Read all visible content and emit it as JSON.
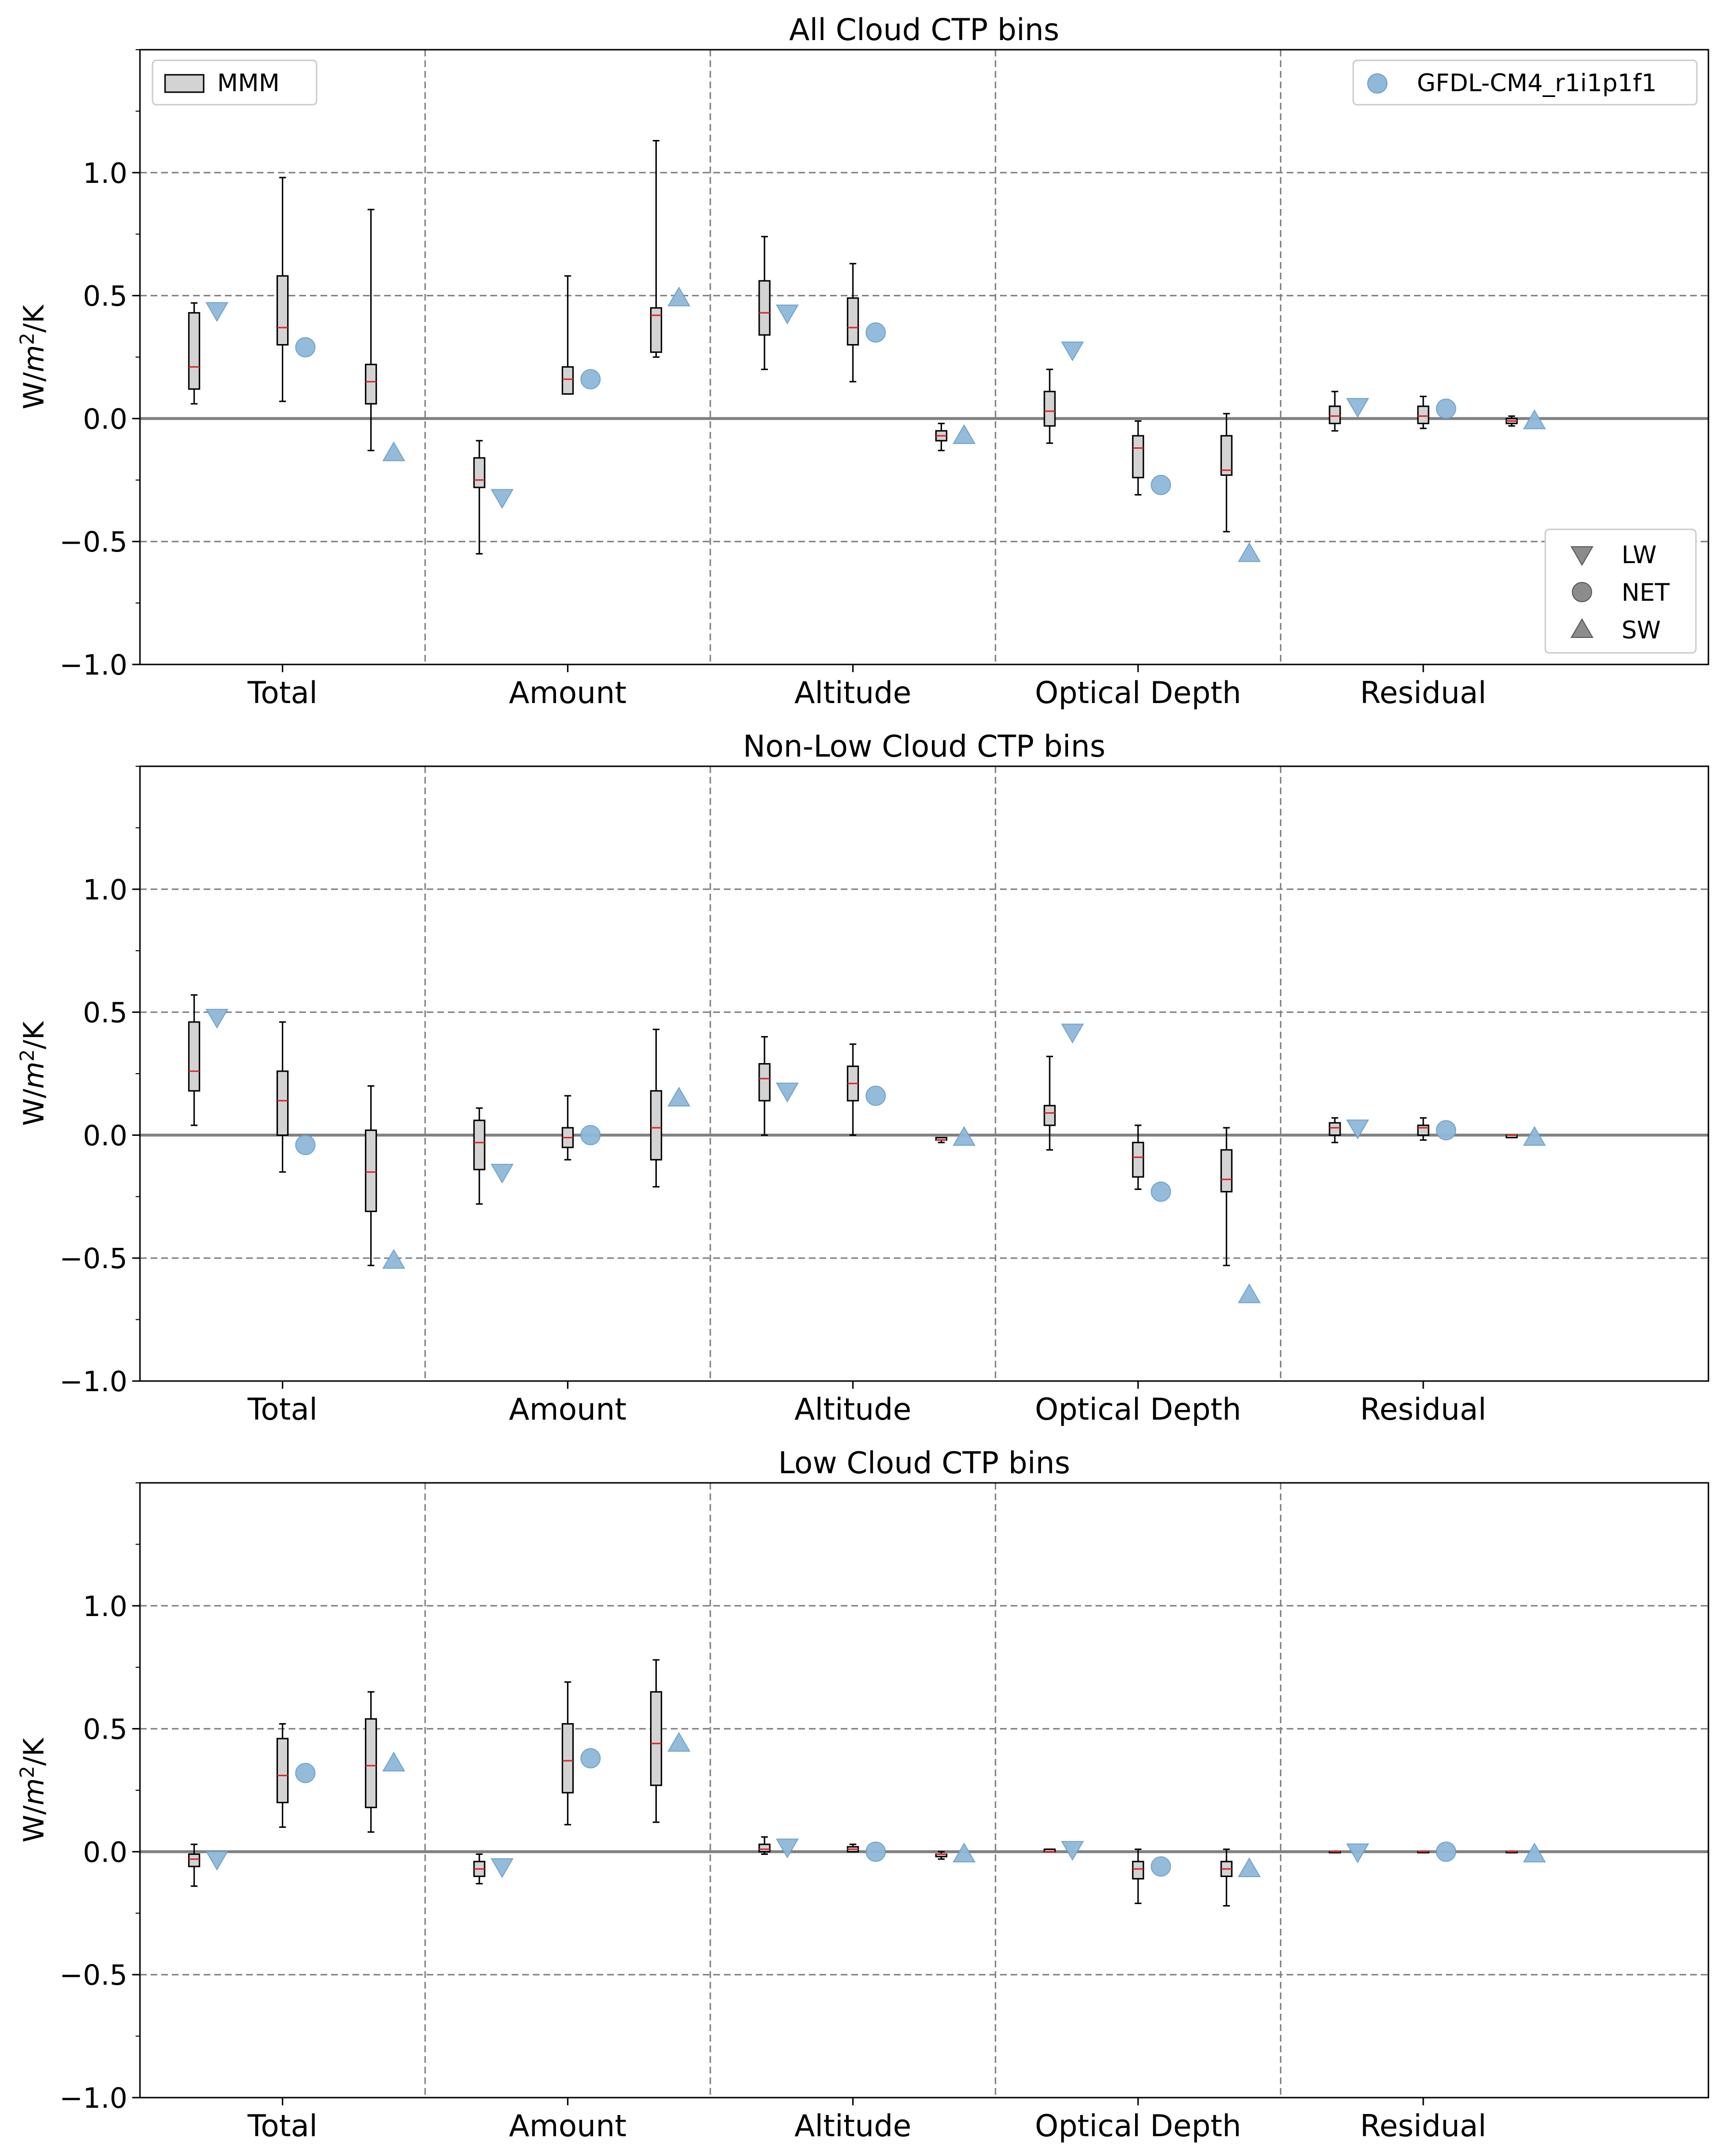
{
  "figure": {
    "legend_mmm_label": "MMM",
    "legend_model_label": "GFDL-CM4_r1i1p1f1",
    "legend_component_labels": [
      "LW",
      "NET",
      "SW"
    ],
    "colors": {
      "box_fill": "#d3d3d3",
      "median": "#d62728",
      "model_marker": "#8fb8d9",
      "zero_line": "#808080",
      "grid": "#808080"
    }
  },
  "chart_data": [
    {
      "type": "box",
      "title": "All Cloud CTP bins",
      "ylabel": "W/m²/K",
      "ylim": [
        -1.0,
        1.5
      ],
      "yticks": [
        -1.0,
        -0.5,
        0.0,
        0.5,
        1.0
      ],
      "ytick_labels": [
        "−1.0",
        "−0.5",
        "0.0",
        "0.5",
        "1.0"
      ],
      "grid": "dashed",
      "categories": [
        "Total",
        "Amount",
        "Altitude",
        "Optical Depth",
        "Residual"
      ],
      "components": [
        "LW",
        "NET",
        "SW"
      ],
      "mmm": {
        "LW": [
          [
            0.06,
            0.12,
            0.21,
            0.43,
            0.47
          ],
          [
            -0.55,
            -0.28,
            -0.25,
            -0.16,
            -0.09
          ],
          [
            0.2,
            0.34,
            0.43,
            0.56,
            0.74
          ],
          [
            -0.1,
            -0.03,
            0.03,
            0.11,
            0.2
          ],
          [
            -0.05,
            -0.02,
            0.01,
            0.05,
            0.11
          ]
        ],
        "NET": [
          [
            0.07,
            0.3,
            0.37,
            0.58,
            0.98
          ],
          [
            0.1,
            0.1,
            0.16,
            0.21,
            0.58
          ],
          [
            0.15,
            0.3,
            0.37,
            0.49,
            0.63
          ],
          [
            -0.31,
            -0.24,
            -0.12,
            -0.07,
            -0.01
          ],
          [
            -0.04,
            -0.02,
            0.01,
            0.05,
            0.09
          ]
        ],
        "SW": [
          [
            -0.13,
            0.06,
            0.15,
            0.22,
            0.85
          ],
          [
            0.25,
            0.27,
            0.42,
            0.45,
            1.13
          ],
          [
            -0.13,
            -0.09,
            -0.07,
            -0.05,
            -0.02
          ],
          [
            -0.46,
            -0.23,
            -0.21,
            -0.07,
            0.02
          ],
          [
            -0.03,
            -0.02,
            -0.01,
            0.0,
            0.01
          ]
        ]
      },
      "model": {
        "LW": [
          0.44,
          -0.32,
          0.43,
          0.28,
          0.05
        ],
        "NET": [
          0.29,
          0.16,
          0.35,
          -0.27,
          0.04
        ],
        "SW": [
          -0.14,
          0.49,
          -0.07,
          -0.55,
          -0.01
        ]
      }
    },
    {
      "type": "box",
      "title": "Non-Low Cloud CTP bins",
      "ylabel": "W/m²/K",
      "ylim": [
        -1.0,
        1.5
      ],
      "yticks": [
        -1.0,
        -0.5,
        0.0,
        0.5,
        1.0
      ],
      "ytick_labels": [
        "−1.0",
        "−0.5",
        "0.0",
        "0.5",
        "1.0"
      ],
      "grid": "dashed",
      "categories": [
        "Total",
        "Amount",
        "Altitude",
        "Optical Depth",
        "Residual"
      ],
      "components": [
        "LW",
        "NET",
        "SW"
      ],
      "mmm": {
        "LW": [
          [
            0.04,
            0.18,
            0.26,
            0.46,
            0.57
          ],
          [
            -0.28,
            -0.14,
            -0.03,
            0.06,
            0.11
          ],
          [
            0.0,
            0.14,
            0.23,
            0.29,
            0.4
          ],
          [
            -0.06,
            0.04,
            0.09,
            0.12,
            0.32
          ],
          [
            -0.03,
            0.0,
            0.03,
            0.05,
            0.07
          ]
        ],
        "NET": [
          [
            -0.15,
            0.0,
            0.14,
            0.26,
            0.46
          ],
          [
            -0.1,
            -0.05,
            -0.01,
            0.03,
            0.16
          ],
          [
            0.0,
            0.14,
            0.21,
            0.28,
            0.37
          ],
          [
            -0.22,
            -0.17,
            -0.09,
            -0.03,
            0.04
          ],
          [
            -0.02,
            0.0,
            0.03,
            0.04,
            0.07
          ]
        ],
        "SW": [
          [
            -0.53,
            -0.31,
            -0.15,
            0.02,
            0.2
          ],
          [
            -0.21,
            -0.1,
            0.03,
            0.18,
            0.43
          ],
          [
            -0.03,
            -0.02,
            -0.02,
            -0.01,
            -0.01
          ],
          [
            -0.53,
            -0.23,
            -0.18,
            -0.06,
            0.03
          ],
          [
            -0.01,
            -0.01,
            0.0,
            0.0,
            0.0
          ]
        ]
      },
      "model": {
        "LW": [
          0.48,
          -0.15,
          0.18,
          0.42,
          0.03
        ],
        "NET": [
          -0.04,
          0.0,
          0.16,
          -0.23,
          0.02
        ],
        "SW": [
          -0.51,
          0.15,
          -0.01,
          -0.65,
          -0.01
        ]
      }
    },
    {
      "type": "box",
      "title": "Low Cloud CTP bins",
      "ylabel": "W/m²/K",
      "ylim": [
        -1.0,
        1.5
      ],
      "yticks": [
        -1.0,
        -0.5,
        0.0,
        0.5,
        1.0
      ],
      "ytick_labels": [
        "−1.0",
        "−0.5",
        "0.0",
        "0.5",
        "1.0"
      ],
      "grid": "dashed",
      "categories": [
        "Total",
        "Amount",
        "Altitude",
        "Optical Depth",
        "Residual"
      ],
      "components": [
        "LW",
        "NET",
        "SW"
      ],
      "mmm": {
        "LW": [
          [
            -0.14,
            -0.06,
            -0.03,
            -0.01,
            0.03
          ],
          [
            -0.13,
            -0.1,
            -0.07,
            -0.04,
            -0.01
          ],
          [
            -0.01,
            0.0,
            0.01,
            0.03,
            0.06
          ],
          [
            0.0,
            0.0,
            0.0,
            0.01,
            0.01
          ],
          [
            0.0,
            0.0,
            0.0,
            0.0,
            0.0
          ]
        ],
        "NET": [
          [
            0.1,
            0.2,
            0.31,
            0.46,
            0.52
          ],
          [
            0.11,
            0.24,
            0.37,
            0.52,
            0.69
          ],
          [
            0.0,
            0.0,
            0.01,
            0.02,
            0.03
          ],
          [
            -0.21,
            -0.11,
            -0.07,
            -0.04,
            0.01
          ],
          [
            0.0,
            0.0,
            0.0,
            0.0,
            0.0
          ]
        ],
        "SW": [
          [
            0.08,
            0.18,
            0.35,
            0.54,
            0.65
          ],
          [
            0.12,
            0.27,
            0.44,
            0.65,
            0.78
          ],
          [
            -0.03,
            -0.02,
            -0.01,
            -0.01,
            0.0
          ],
          [
            -0.22,
            -0.1,
            -0.07,
            -0.04,
            0.01
          ],
          [
            0.0,
            0.0,
            0.0,
            0.0,
            0.0
          ]
        ]
      },
      "model": {
        "LW": [
          -0.03,
          -0.06,
          0.02,
          0.01,
          0.0
        ],
        "NET": [
          0.32,
          0.38,
          0.0,
          -0.06,
          0.0
        ],
        "SW": [
          0.36,
          0.44,
          -0.01,
          -0.07,
          -0.01
        ]
      }
    }
  ]
}
